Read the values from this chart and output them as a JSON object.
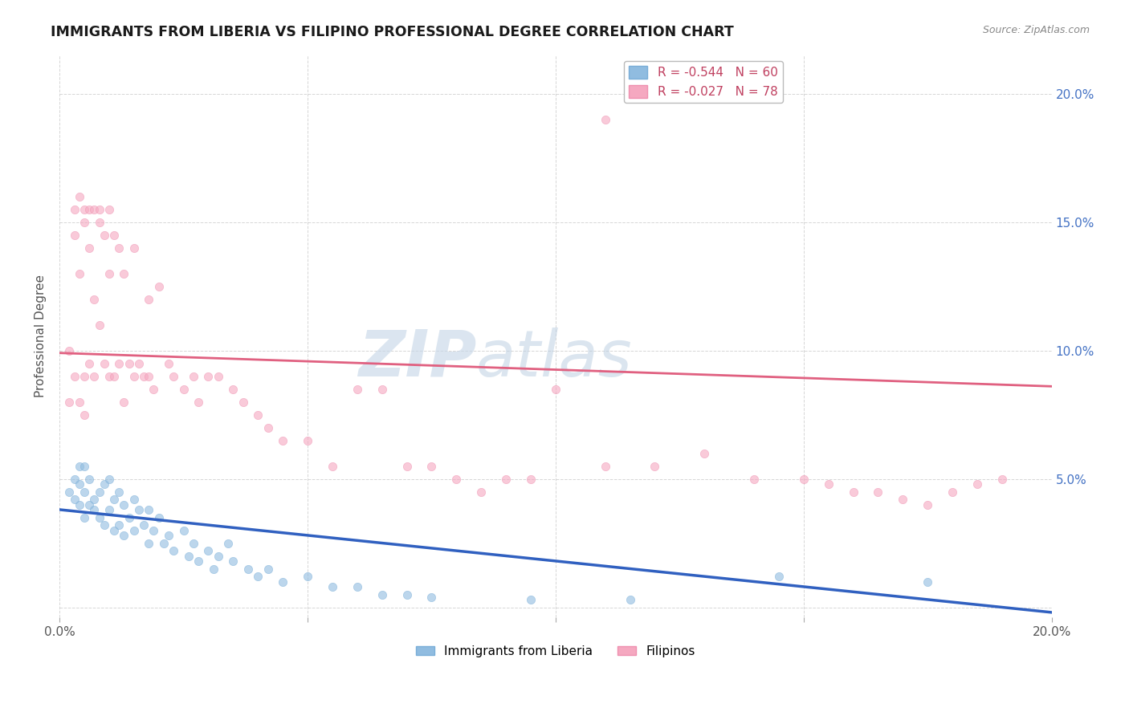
{
  "title": "IMMIGRANTS FROM LIBERIA VS FILIPINO PROFESSIONAL DEGREE CORRELATION CHART",
  "source_text": "Source: ZipAtlas.com",
  "ylabel": "Professional Degree",
  "ylabel_right_ticks": [
    "20.0%",
    "15.0%",
    "10.0%",
    "5.0%",
    ""
  ],
  "ylabel_right_vals": [
    0.2,
    0.15,
    0.1,
    0.05,
    0.0
  ],
  "xmin": 0.0,
  "xmax": 0.2,
  "ymin": -0.004,
  "ymax": 0.215,
  "legend_stats": [
    {
      "label": "R = -0.544   N = 60",
      "color": "#a8c8e8"
    },
    {
      "label": "R = -0.027   N = 78",
      "color": "#f4a0b8"
    }
  ],
  "legend_labels": [
    "Immigrants from Liberia",
    "Filipinos"
  ],
  "blue_scatter_x": [
    0.002,
    0.003,
    0.003,
    0.004,
    0.004,
    0.004,
    0.005,
    0.005,
    0.005,
    0.006,
    0.006,
    0.007,
    0.007,
    0.008,
    0.008,
    0.009,
    0.009,
    0.01,
    0.01,
    0.011,
    0.011,
    0.012,
    0.012,
    0.013,
    0.013,
    0.014,
    0.015,
    0.015,
    0.016,
    0.017,
    0.018,
    0.018,
    0.019,
    0.02,
    0.021,
    0.022,
    0.023,
    0.025,
    0.026,
    0.027,
    0.028,
    0.03,
    0.031,
    0.032,
    0.034,
    0.035,
    0.038,
    0.04,
    0.042,
    0.045,
    0.05,
    0.055,
    0.06,
    0.065,
    0.07,
    0.075,
    0.095,
    0.115,
    0.145,
    0.175
  ],
  "blue_scatter_y": [
    0.045,
    0.05,
    0.042,
    0.055,
    0.048,
    0.04,
    0.055,
    0.045,
    0.035,
    0.05,
    0.04,
    0.042,
    0.038,
    0.045,
    0.035,
    0.048,
    0.032,
    0.05,
    0.038,
    0.042,
    0.03,
    0.045,
    0.032,
    0.04,
    0.028,
    0.035,
    0.042,
    0.03,
    0.038,
    0.032,
    0.038,
    0.025,
    0.03,
    0.035,
    0.025,
    0.028,
    0.022,
    0.03,
    0.02,
    0.025,
    0.018,
    0.022,
    0.015,
    0.02,
    0.025,
    0.018,
    0.015,
    0.012,
    0.015,
    0.01,
    0.012,
    0.008,
    0.008,
    0.005,
    0.005,
    0.004,
    0.003,
    0.003,
    0.012,
    0.01
  ],
  "pink_scatter_x": [
    0.002,
    0.002,
    0.003,
    0.003,
    0.003,
    0.004,
    0.004,
    0.004,
    0.005,
    0.005,
    0.005,
    0.005,
    0.006,
    0.006,
    0.006,
    0.007,
    0.007,
    0.007,
    0.008,
    0.008,
    0.008,
    0.009,
    0.009,
    0.01,
    0.01,
    0.01,
    0.011,
    0.011,
    0.012,
    0.012,
    0.013,
    0.013,
    0.014,
    0.015,
    0.015,
    0.016,
    0.017,
    0.018,
    0.018,
    0.019,
    0.02,
    0.022,
    0.023,
    0.025,
    0.027,
    0.028,
    0.03,
    0.032,
    0.035,
    0.037,
    0.04,
    0.042,
    0.045,
    0.05,
    0.055,
    0.06,
    0.065,
    0.07,
    0.075,
    0.08,
    0.085,
    0.09,
    0.095,
    0.1,
    0.11,
    0.12,
    0.13,
    0.14,
    0.15,
    0.155,
    0.16,
    0.165,
    0.17,
    0.175,
    0.18,
    0.185,
    0.19,
    0.11
  ],
  "pink_scatter_y": [
    0.1,
    0.08,
    0.155,
    0.145,
    0.09,
    0.16,
    0.13,
    0.08,
    0.155,
    0.15,
    0.09,
    0.075,
    0.155,
    0.14,
    0.095,
    0.155,
    0.12,
    0.09,
    0.155,
    0.15,
    0.11,
    0.145,
    0.095,
    0.155,
    0.13,
    0.09,
    0.145,
    0.09,
    0.14,
    0.095,
    0.13,
    0.08,
    0.095,
    0.14,
    0.09,
    0.095,
    0.09,
    0.12,
    0.09,
    0.085,
    0.125,
    0.095,
    0.09,
    0.085,
    0.09,
    0.08,
    0.09,
    0.09,
    0.085,
    0.08,
    0.075,
    0.07,
    0.065,
    0.065,
    0.055,
    0.085,
    0.085,
    0.055,
    0.055,
    0.05,
    0.045,
    0.05,
    0.05,
    0.085,
    0.055,
    0.055,
    0.06,
    0.05,
    0.05,
    0.048,
    0.045,
    0.045,
    0.042,
    0.04,
    0.045,
    0.048,
    0.05,
    0.19
  ],
  "blue_line_x": [
    0.0,
    0.2
  ],
  "blue_line_y": [
    0.038,
    -0.002
  ],
  "pink_line_x": [
    0.0,
    0.2
  ],
  "pink_line_y": [
    0.099,
    0.086
  ],
  "scatter_size": 55,
  "blue_color": "#90bce0",
  "pink_color": "#f5a8c0",
  "blue_edge_color": "#7aaed8",
  "pink_edge_color": "#ef90b0",
  "blue_line_color": "#3060c0",
  "pink_line_color": "#e06080",
  "watermark_zip": "ZIP",
  "watermark_atlas": "atlas",
  "background_color": "#ffffff",
  "grid_color": "#cccccc"
}
